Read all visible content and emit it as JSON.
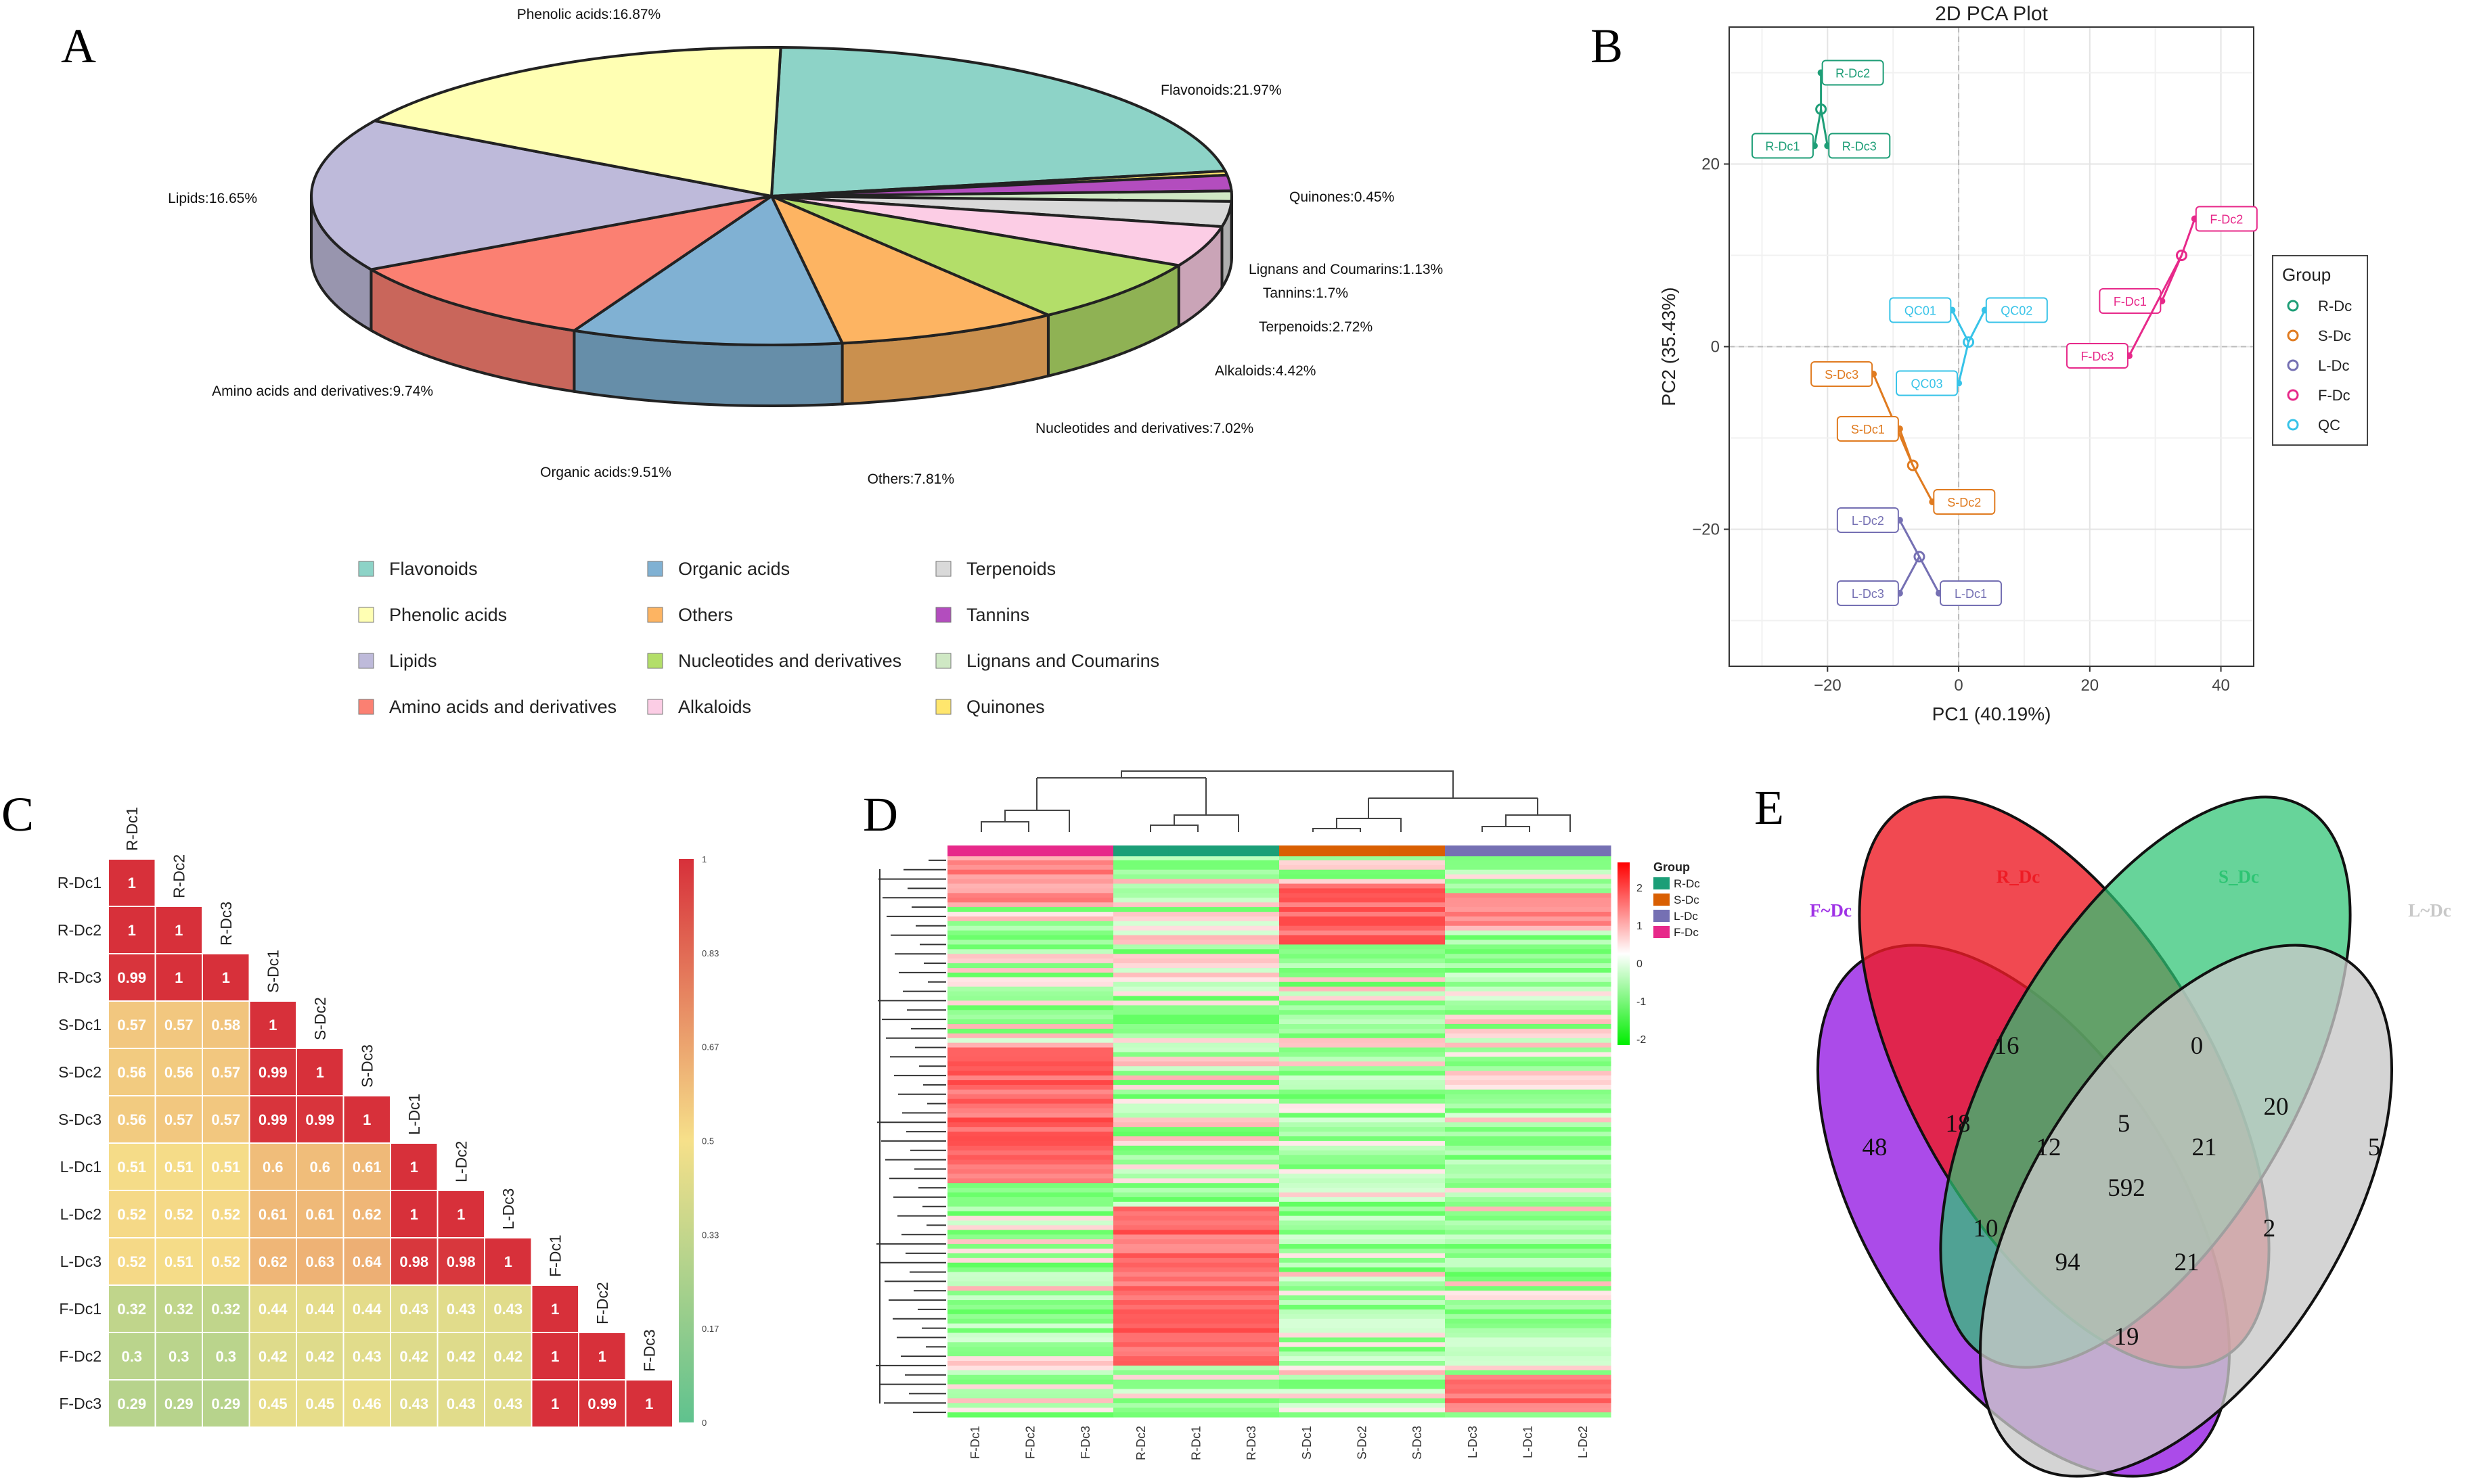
{
  "panel_labels": {
    "a": "A",
    "b": "B",
    "c": "C",
    "d": "D",
    "e": "E"
  },
  "chart_data": [
    {
      "panel": "A",
      "type": "pie",
      "categories": [
        "Flavonoids",
        "Quinones",
        "Tannins",
        "Lignans and Coumarins",
        "Terpenoids",
        "Alkaloids",
        "Nucleotides and derivatives",
        "Others",
        "Organic acids",
        "Amino acids and derivatives",
        "Lipids",
        "Phenolic acids"
      ],
      "values": [
        21.97,
        0.45,
        1.7,
        1.13,
        2.72,
        4.42,
        7.02,
        7.81,
        9.51,
        9.74,
        16.65,
        16.87
      ],
      "slice_labels": [
        "Flavonoids:21.97%",
        "Quinones:0.45%",
        "Tannins:1.7%",
        "Lignans and Coumarins:1.13%",
        "Terpenoids:2.72%",
        "Alkaloids:4.42%",
        "Nucleotides and derivatives:7.02%",
        "Others:7.81%",
        "Organic acids:9.51%",
        "Amino acids and derivatives:9.74%",
        "Lipids:16.65%",
        "Phenolic acids:16.87%"
      ],
      "colors": [
        "#8dd3c7",
        "#ffe66d",
        "#b34dbe",
        "#cfe8c4",
        "#d9d9d9",
        "#fccde5",
        "#b3de69",
        "#fdb462",
        "#80b1d3",
        "#fb8072",
        "#bebada",
        "#ffffb3"
      ],
      "legend": [
        "Flavonoids",
        "Phenolic acids",
        "Lipids",
        "Amino acids and derivatives",
        "Organic acids",
        "Others",
        "Nucleotides and derivatives",
        "Alkaloids",
        "Terpenoids",
        "Tannins",
        "Lignans and Coumarins",
        "Quinones"
      ],
      "legend_colors": [
        "#8dd3c7",
        "#ffffb3",
        "#bebada",
        "#fb8072",
        "#80b1d3",
        "#fdb462",
        "#b3de69",
        "#fccde5",
        "#d9d9d9",
        "#b34dbe",
        "#cfe8c4",
        "#ffe66d"
      ]
    },
    {
      "panel": "B",
      "type": "scatter",
      "title": "2D PCA Plot",
      "xlabel": "PC1 (40.19%)",
      "ylabel": "PC2 (35.43%)",
      "xlim": [
        -35,
        45
      ],
      "ylim": [
        -35,
        35
      ],
      "xticks": [
        -20,
        0,
        20,
        40
      ],
      "yticks": [
        -20,
        0,
        20
      ],
      "grid": true,
      "legend_title": "Group",
      "groups": [
        {
          "name": "R-Dc",
          "color": "#1e9e77",
          "centroid": [
            -21,
            26
          ],
          "points": [
            {
              "label": "R-Dc2",
              "x": -21,
              "y": 30
            },
            {
              "label": "R-Dc1",
              "x": -22,
              "y": 22
            },
            {
              "label": "R-Dc3",
              "x": -20,
              "y": 22
            }
          ]
        },
        {
          "name": "S-Dc",
          "color": "#e07b20",
          "centroid": [
            -7,
            -13
          ],
          "points": [
            {
              "label": "S-Dc3",
              "x": -13,
              "y": -3
            },
            {
              "label": "S-Dc1",
              "x": -9,
              "y": -9
            },
            {
              "label": "S-Dc2",
              "x": -4,
              "y": -17
            }
          ]
        },
        {
          "name": "L-Dc",
          "color": "#7570b3",
          "centroid": [
            -6,
            -23
          ],
          "points": [
            {
              "label": "L-Dc2",
              "x": -9,
              "y": -19
            },
            {
              "label": "L-Dc3",
              "x": -9,
              "y": -27
            },
            {
              "label": "L-Dc1",
              "x": -3,
              "y": -27
            }
          ]
        },
        {
          "name": "F-Dc",
          "color": "#e7298a",
          "centroid": [
            34,
            10
          ],
          "points": [
            {
              "label": "F-Dc2",
              "x": 36,
              "y": 14
            },
            {
              "label": "F-Dc1",
              "x": 31,
              "y": 5
            },
            {
              "label": "F-Dc3",
              "x": 26,
              "y": -1
            }
          ]
        },
        {
          "name": "QC",
          "color": "#37c3e8",
          "centroid": [
            1.5,
            0.5
          ],
          "points": [
            {
              "label": "QC01",
              "x": -1,
              "y": 4
            },
            {
              "label": "QC02",
              "x": 4,
              "y": 4
            },
            {
              "label": "QC03",
              "x": 0,
              "y": -4
            }
          ]
        }
      ]
    },
    {
      "panel": "C",
      "type": "heatmap",
      "subtype": "correlation-lower-triangle",
      "labels": [
        "R-Dc1",
        "R-Dc2",
        "R-Dc3",
        "S-Dc1",
        "S-Dc2",
        "S-Dc3",
        "L-Dc1",
        "L-Dc2",
        "L-Dc3",
        "F-Dc1",
        "F-Dc2",
        "F-Dc3"
      ],
      "values": [
        [
          1
        ],
        [
          1,
          1
        ],
        [
          0.99,
          1,
          1
        ],
        [
          0.57,
          0.57,
          0.58,
          1
        ],
        [
          0.56,
          0.56,
          0.57,
          0.99,
          1
        ],
        [
          0.56,
          0.57,
          0.57,
          0.99,
          0.99,
          1
        ],
        [
          0.51,
          0.51,
          0.51,
          0.6,
          0.6,
          0.61,
          1
        ],
        [
          0.52,
          0.52,
          0.52,
          0.61,
          0.61,
          0.62,
          1,
          1
        ],
        [
          0.52,
          0.51,
          0.52,
          0.62,
          0.63,
          0.64,
          0.98,
          0.98,
          1
        ],
        [
          0.32,
          0.32,
          0.32,
          0.44,
          0.44,
          0.44,
          0.43,
          0.43,
          0.43,
          1
        ],
        [
          0.3,
          0.3,
          0.3,
          0.42,
          0.42,
          0.43,
          0.42,
          0.42,
          0.42,
          1,
          1
        ],
        [
          0.29,
          0.29,
          0.29,
          0.45,
          0.45,
          0.46,
          0.43,
          0.43,
          0.43,
          1,
          0.99,
          1
        ]
      ],
      "colorbar_ticks": [
        "1",
        "0.83",
        "0.67",
        "0.5",
        "0.33",
        "0.17",
        "0"
      ],
      "color_low": "#5fc28e",
      "color_mid": "#f6e08a",
      "color_high": "#d7303a"
    },
    {
      "panel": "D",
      "type": "heatmap",
      "subtype": "clustered",
      "columns": [
        "F-Dc1",
        "F-Dc2",
        "F-Dc3",
        "R-Dc2",
        "R-Dc1",
        "R-Dc3",
        "S-Dc1",
        "S-Dc2",
        "S-Dc3",
        "L-Dc3",
        "L-Dc1",
        "L-Dc2"
      ],
      "column_groups": [
        "F-Dc",
        "F-Dc",
        "F-Dc",
        "R-Dc",
        "R-Dc",
        "R-Dc",
        "S-Dc",
        "S-Dc",
        "S-Dc",
        "L-Dc",
        "L-Dc",
        "L-Dc"
      ],
      "legend_title": "Group",
      "legend": [
        {
          "name": "R-Dc",
          "color": "#1b9e77"
        },
        {
          "name": "S-Dc",
          "color": "#d95f02"
        },
        {
          "name": "L-Dc",
          "color": "#7570b3"
        },
        {
          "name": "F-Dc",
          "color": "#e7298a"
        }
      ],
      "colorbar_ticks": [
        "2",
        "1",
        "0",
        "-1",
        "-2"
      ],
      "block_pattern": [
        {
          "group": "F-Dc",
          "high_rows": [
            0.34,
            0.58
          ]
        },
        {
          "group": "R-Dc",
          "high_rows": [
            0.62,
            0.9
          ]
        },
        {
          "group": "S-Dc",
          "high_rows": [
            0.05,
            0.15
          ]
        },
        {
          "group": "L-Dc",
          "high_rows": [
            0.92,
            0.99
          ]
        }
      ]
    },
    {
      "panel": "E",
      "type": "venn",
      "sets": [
        {
          "name": "F~Dc",
          "color": "#9f32e6"
        },
        {
          "name": "R_Dc",
          "color": "#ee1c25"
        },
        {
          "name": "S_Dc",
          "color": "#2dc473"
        },
        {
          "name": "L~Dc",
          "color": "#c8c8c8"
        }
      ],
      "regions": [
        "48",
        "16",
        "0",
        "5",
        "18",
        "5",
        "20",
        "12",
        "21",
        "592",
        "10",
        "94",
        "21",
        "2",
        "19"
      ]
    }
  ]
}
